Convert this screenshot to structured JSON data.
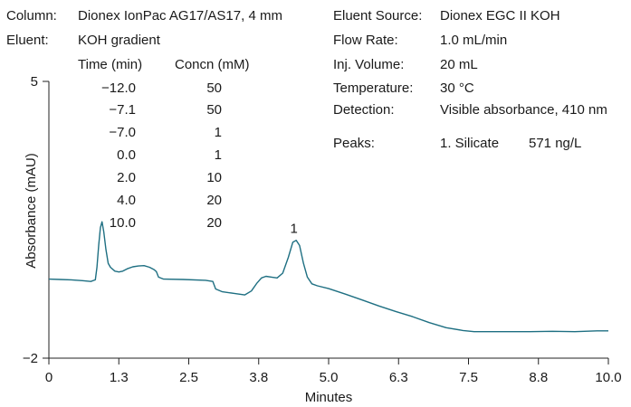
{
  "info": {
    "column_label": "Column:",
    "column_value": "Dionex IonPac AG17/AS17, 4 mm",
    "eluent_label": "Eluent:",
    "eluent_value": "KOH gradient",
    "gradient_headers": [
      "Time (min)",
      "Concn (mM)"
    ],
    "gradient_rows": [
      [
        "−12.0",
        "50"
      ],
      [
        "−7.1",
        "50"
      ],
      [
        "−7.0",
        "1"
      ],
      [
        "0.0",
        "1"
      ],
      [
        "2.0",
        "10"
      ],
      [
        "4.0",
        "20"
      ],
      [
        "10.0",
        "20"
      ]
    ],
    "conditions": [
      {
        "label": "Eluent Source:",
        "value": "Dionex EGC II KOH"
      },
      {
        "label": "Flow Rate:",
        "value": "1.0 mL/min"
      },
      {
        "label": "Inj. Volume:",
        "value": "20 mL"
      },
      {
        "label": "Temperature:",
        "value": "30 °C"
      },
      {
        "label": "Detection:",
        "value": "Visible absorbance, 410 nm"
      }
    ],
    "peaks_label": "Peaks:",
    "peaks": [
      {
        "name": "1. Silicate",
        "amount": "571 ng/L"
      }
    ]
  },
  "chart_data": {
    "type": "line",
    "title": "",
    "xlabel": "Minutes",
    "ylabel": "Absorbance (mAU)",
    "xlim": [
      0,
      10
    ],
    "ylim": [
      -2,
      5
    ],
    "x_ticks": [
      "0",
      "1.3",
      "2.5",
      "3.8",
      "5.0",
      "6.3",
      "7.5",
      "8.8",
      "10.0"
    ],
    "y_ticks": [
      "5",
      "−2"
    ],
    "grid": false,
    "line_color": "#1e6f82",
    "peak_labels": [
      {
        "text": "1",
        "x": 4.38,
        "y": 0.98
      }
    ],
    "series": [
      {
        "points": [
          [
            0,
            0.0
          ],
          [
            0.2,
            -0.01
          ],
          [
            0.4,
            -0.02
          ],
          [
            0.6,
            -0.04
          ],
          [
            0.75,
            -0.06
          ],
          [
            0.83,
            -0.02
          ],
          [
            0.86,
            0.3
          ],
          [
            0.89,
            0.85
          ],
          [
            0.92,
            1.3
          ],
          [
            0.95,
            1.45
          ],
          [
            0.98,
            1.2
          ],
          [
            1.02,
            0.75
          ],
          [
            1.06,
            0.4
          ],
          [
            1.1,
            0.3
          ],
          [
            1.18,
            0.2
          ],
          [
            1.25,
            0.18
          ],
          [
            1.32,
            0.2
          ],
          [
            1.4,
            0.26
          ],
          [
            1.5,
            0.31
          ],
          [
            1.6,
            0.33
          ],
          [
            1.7,
            0.34
          ],
          [
            1.8,
            0.3
          ],
          [
            1.88,
            0.24
          ],
          [
            1.92,
            0.19
          ],
          [
            1.96,
            0.05
          ],
          [
            2.05,
            0.0
          ],
          [
            2.4,
            -0.01
          ],
          [
            2.8,
            -0.03
          ],
          [
            2.93,
            -0.06
          ],
          [
            2.98,
            -0.25
          ],
          [
            3.1,
            -0.32
          ],
          [
            3.3,
            -0.36
          ],
          [
            3.5,
            -0.4
          ],
          [
            3.62,
            -0.3
          ],
          [
            3.72,
            -0.1
          ],
          [
            3.8,
            0.03
          ],
          [
            3.88,
            0.07
          ],
          [
            3.98,
            0.05
          ],
          [
            4.08,
            0.03
          ],
          [
            4.18,
            0.15
          ],
          [
            4.28,
            0.55
          ],
          [
            4.36,
            0.93
          ],
          [
            4.42,
            0.98
          ],
          [
            4.48,
            0.85
          ],
          [
            4.55,
            0.4
          ],
          [
            4.62,
            0.05
          ],
          [
            4.7,
            -0.12
          ],
          [
            4.8,
            -0.17
          ],
          [
            5.0,
            -0.24
          ],
          [
            5.3,
            -0.38
          ],
          [
            5.6,
            -0.53
          ],
          [
            5.9,
            -0.68
          ],
          [
            6.2,
            -0.82
          ],
          [
            6.5,
            -0.95
          ],
          [
            6.8,
            -1.1
          ],
          [
            7.1,
            -1.23
          ],
          [
            7.4,
            -1.3
          ],
          [
            7.6,
            -1.33
          ],
          [
            7.9,
            -1.33
          ],
          [
            8.2,
            -1.33
          ],
          [
            8.6,
            -1.33
          ],
          [
            9.0,
            -1.32
          ],
          [
            9.4,
            -1.33
          ],
          [
            9.8,
            -1.31
          ],
          [
            10.0,
            -1.31
          ]
        ]
      }
    ]
  }
}
